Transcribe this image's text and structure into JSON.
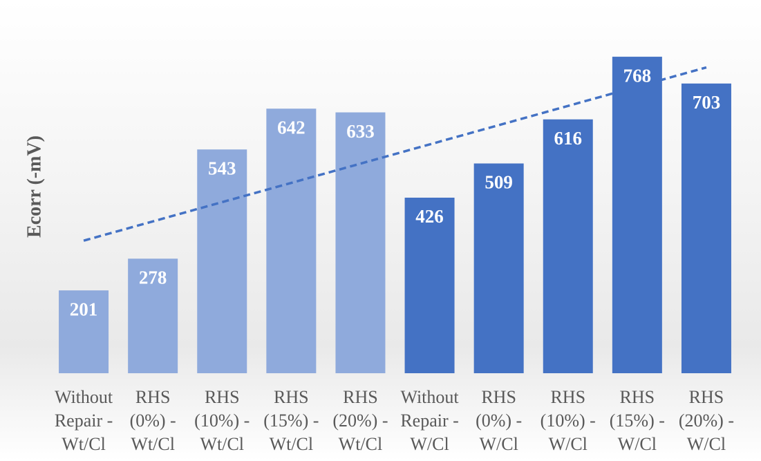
{
  "chart_data": {
    "type": "bar",
    "y_label": "Ecorr (-mV)",
    "categories": [
      "Without Repair - Wt/Cl",
      "RHS (0%) - Wt/Cl",
      "RHS (10%) - Wt/Cl",
      "RHS (15%) - Wt/Cl",
      "RHS (20%) - Wt/Cl",
      "Without Repair - W/Cl",
      "RHS (0%) - W/Cl",
      "RHS (10%) - W/Cl",
      "RHS (15%) - W/Cl",
      "RHS (20%) - W/Cl"
    ],
    "values": [
      201,
      278,
      543,
      642,
      633,
      426,
      509,
      616,
      768,
      703
    ],
    "colors": [
      "#8faadc",
      "#8faadc",
      "#8faadc",
      "#8faadc",
      "#8faadc",
      "#4472c4",
      "#4472c4",
      "#4472c4",
      "#4472c4",
      "#4472c4"
    ],
    "ylim": [
      0,
      800
    ],
    "trendline": "linear",
    "trendline_color": "#4472c4"
  }
}
